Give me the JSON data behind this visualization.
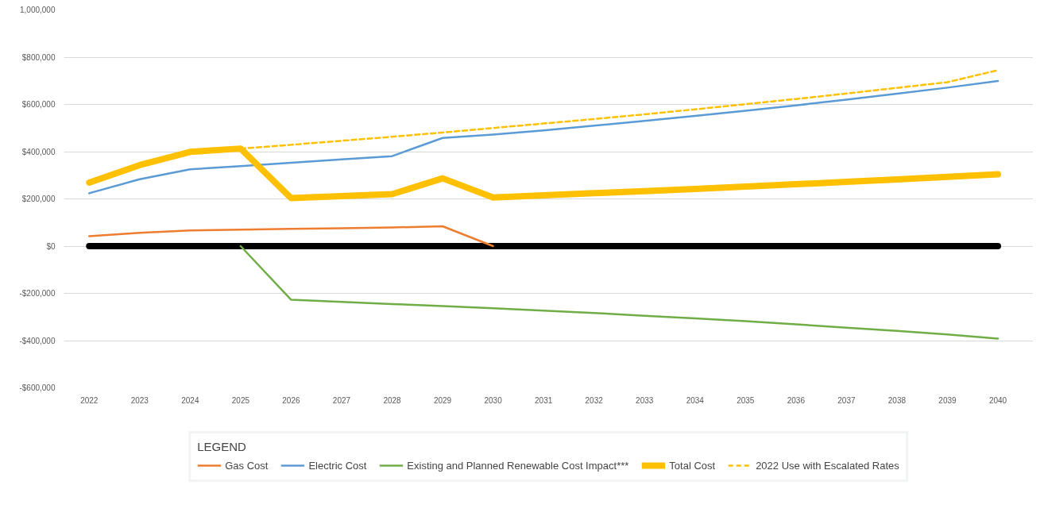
{
  "chart_data": {
    "type": "line",
    "legend_title": "LEGEND",
    "legend": "bottom",
    "grid": "y",
    "categories": [
      "2022",
      "2023",
      "2024",
      "2025",
      "2026",
      "2027",
      "2028",
      "2029",
      "2030",
      "2031",
      "2032",
      "2033",
      "2034",
      "2035",
      "2036",
      "2037",
      "2038",
      "2039",
      "2040"
    ],
    "ylim": [
      -600000,
      1000000
    ],
    "yticks": [
      {
        "value": -600000,
        "label": "-$600,000"
      },
      {
        "value": -400000,
        "label": "-$400,000"
      },
      {
        "value": -200000,
        "label": "-$200,000"
      },
      {
        "value": 0,
        "label": "$0"
      },
      {
        "value": 200000,
        "label": "$200,000"
      },
      {
        "value": 400000,
        "label": "$400,000"
      },
      {
        "value": 600000,
        "label": "$600,000"
      },
      {
        "value": 800000,
        "label": "$800,000"
      },
      {
        "value": 1000000,
        "label": "1,000,000"
      }
    ],
    "ref_lines": [
      {
        "axis": "y",
        "value": 0,
        "color": "#000000"
      }
    ],
    "series": [
      {
        "name": "Gas Cost",
        "color": "#ed7d31",
        "line_style": "solid",
        "values": [
          42000,
          56000,
          66000,
          70000,
          73000,
          76000,
          79000,
          84000,
          0,
          null,
          null,
          null,
          null,
          null,
          null,
          null,
          null,
          null,
          null
        ]
      },
      {
        "name": "Electric Cost",
        "color": "#5b9bd5",
        "line_style": "solid",
        "values": [
          224000,
          283000,
          325000,
          339000,
          353000,
          367000,
          381000,
          458000,
          472000,
          490000,
          510000,
          530000,
          551000,
          573000,
          596000,
          620000,
          645000,
          671000,
          699000
        ]
      },
      {
        "name": "Existing and Planned Renewable Cost Impact***",
        "color": "#70ad47",
        "line_style": "solid",
        "values": [
          null,
          null,
          null,
          0,
          -227000,
          -236000,
          -245000,
          -254000,
          -263000,
          -273000,
          -283000,
          -295000,
          -306000,
          -318000,
          -331000,
          -345000,
          -359000,
          -374000,
          -392000
        ]
      },
      {
        "name": "Total Cost",
        "color": "#ffc000",
        "line_style": "solid",
        "values": [
          269000,
          343000,
          399000,
          413000,
          203000,
          212000,
          220000,
          287000,
          206000,
          215000,
          224000,
          233000,
          242000,
          252000,
          262000,
          272000,
          282000,
          293000,
          304000
        ]
      },
      {
        "name": "2022 Use with Escalated Rates",
        "color": "#ffc000",
        "line_style": "dashed",
        "values": [
          null,
          null,
          null,
          413000,
          429000,
          446000,
          463000,
          481000,
          500000,
          519000,
          538000,
          558000,
          579000,
          601000,
          623000,
          646000,
          670000,
          694000,
          745000
        ]
      }
    ]
  }
}
